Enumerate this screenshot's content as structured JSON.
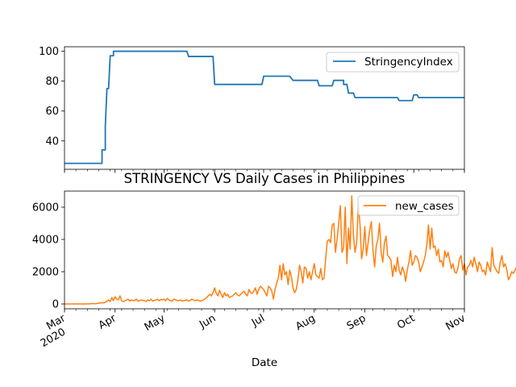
{
  "chart_data": [
    {
      "type": "line",
      "title": "",
      "xlabel": "",
      "ylabel": "",
      "x_range": [
        "2020-03-01",
        "2020-11-01"
      ],
      "ylim": [
        21,
        103
      ],
      "yticks": [
        40,
        60,
        80,
        100
      ],
      "grid": false,
      "legend_position": "upper right",
      "series": [
        {
          "name": "StringencyIndex",
          "color": "#1f77b4",
          "step": true,
          "points": [
            [
              "2020-03-01",
              25
            ],
            [
              "2020-03-24",
              25
            ],
            [
              "2020-03-24",
              34
            ],
            [
              "2020-03-26",
              34
            ],
            [
              "2020-03-26",
              50
            ],
            [
              "2020-03-27",
              75
            ],
            [
              "2020-03-28",
              75
            ],
            [
              "2020-03-29",
              97
            ],
            [
              "2020-03-31",
              97
            ],
            [
              "2020-03-31",
              100
            ],
            [
              "2020-05-15",
              100
            ],
            [
              "2020-05-16",
              96.5
            ],
            [
              "2020-05-31",
              96.5
            ],
            [
              "2020-06-01",
              77.8
            ],
            [
              "2020-06-30",
              77.8
            ],
            [
              "2020-07-01",
              83.3
            ],
            [
              "2020-07-17",
              83.3
            ],
            [
              "2020-07-19",
              80.5
            ],
            [
              "2020-08-03",
              80.5
            ],
            [
              "2020-08-04",
              76.9
            ],
            [
              "2020-08-12",
              76.9
            ],
            [
              "2020-08-13",
              80.5
            ],
            [
              "2020-08-19",
              80.5
            ],
            [
              "2020-08-19",
              77.8
            ],
            [
              "2020-08-21",
              77.8
            ],
            [
              "2020-08-22",
              72
            ],
            [
              "2020-08-25",
              72
            ],
            [
              "2020-08-26",
              69
            ],
            [
              "2020-09-21",
              69
            ],
            [
              "2020-09-22",
              67
            ],
            [
              "2020-09-30",
              67
            ],
            [
              "2020-10-01",
              70.8
            ],
            [
              "2020-10-03",
              70.8
            ],
            [
              "2020-10-04",
              69
            ],
            [
              "2020-11-01",
              69
            ]
          ]
        }
      ]
    },
    {
      "type": "line",
      "title": "STRINGENCY VS Daily Cases in Philippines",
      "xlabel": "Date",
      "ylabel": "",
      "x_range": [
        "2020-03-01",
        "2020-11-01"
      ],
      "ylim": [
        -300,
        7000
      ],
      "yticks": [
        0,
        2000,
        4000,
        6000
      ],
      "grid": false,
      "legend_position": "upper right",
      "xticks": [
        {
          "date": "2020-03-01",
          "label": "Mar",
          "sublabel": "2020"
        },
        {
          "date": "2020-04-01",
          "label": "Apr"
        },
        {
          "date": "2020-05-01",
          "label": "May"
        },
        {
          "date": "2020-06-01",
          "label": "Jun"
        },
        {
          "date": "2020-07-01",
          "label": "Jul"
        },
        {
          "date": "2020-08-01",
          "label": "Aug"
        },
        {
          "date": "2020-09-01",
          "label": "Sep"
        },
        {
          "date": "2020-10-01",
          "label": "Oct"
        },
        {
          "date": "2020-11-01",
          "label": "Nov"
        }
      ],
      "series": [
        {
          "name": "new_cases",
          "color": "#ff7f0e",
          "start_date": "2020-03-01",
          "values": [
            0,
            0,
            0,
            0,
            0,
            0,
            0,
            0,
            0,
            0,
            0,
            0,
            0,
            2,
            5,
            8,
            10,
            30,
            20,
            15,
            30,
            50,
            60,
            80,
            70,
            100,
            180,
            250,
            150,
            400,
            200,
            450,
            300,
            250,
            500,
            200,
            150,
            200,
            250,
            300,
            180,
            250,
            200,
            220,
            300,
            180,
            200,
            250,
            220,
            200,
            150,
            250,
            200,
            300,
            180,
            220,
            250,
            300,
            200,
            280,
            250,
            300,
            200,
            350,
            250,
            200,
            180,
            300,
            250,
            220,
            200,
            250,
            180,
            200,
            230,
            250,
            180,
            220,
            300,
            250,
            200,
            250,
            220,
            180,
            200,
            250,
            300,
            400,
            500,
            600,
            500,
            700,
            1000,
            650,
            500,
            850,
            600,
            400,
            700,
            500,
            600,
            400,
            450,
            500,
            600,
            700,
            550,
            500,
            600,
            700,
            800,
            600,
            500,
            900,
            700,
            650,
            800,
            1000,
            600,
            900,
            1100,
            1000,
            900,
            700,
            500,
            1100,
            1000,
            800,
            300,
            900,
            1300,
            1600,
            2400,
            1500,
            2500,
            1800,
            2000,
            1200,
            2100,
            1700,
            1000,
            700,
            900,
            1500,
            2400,
            2000,
            1300,
            2300,
            2200,
            1600,
            2000,
            1500,
            2000,
            2500,
            1800,
            1700,
            1600,
            2200,
            1500,
            1600,
            2800,
            3900,
            4000,
            3800,
            4900,
            5000,
            3200,
            4000,
            5000,
            6100,
            3200,
            3500,
            6000,
            2500,
            4700,
            3400,
            6700,
            4300,
            3200,
            3800,
            6200,
            5000,
            2800,
            3400,
            4800,
            3000,
            3800,
            4600,
            5100,
            3300,
            2300,
            3600,
            4000,
            5000,
            3200,
            2600,
            3800,
            4200,
            3000,
            2900,
            2700,
            1700,
            2400,
            2000,
            2900,
            2100,
            1800,
            2300,
            2000,
            1400,
            2100,
            2600,
            3300,
            2400,
            2600,
            3000,
            2900,
            2600,
            2000,
            2300,
            2600,
            3000,
            3700,
            4900,
            3400,
            4700,
            3500,
            3600,
            3000,
            3400,
            2600,
            2700,
            2300,
            3300,
            2900,
            3200,
            2700,
            2200,
            2500,
            2000,
            1900,
            2200,
            2800,
            3000,
            2100,
            2500,
            1800,
            2300,
            2400,
            2700,
            2300,
            2900,
            2500,
            2000,
            2600,
            2400,
            2000,
            2100,
            1800,
            2600,
            2300,
            2000,
            3500,
            2400,
            2200,
            2000,
            1900,
            2600,
            3000,
            2300,
            2500,
            2100,
            1500,
            1700,
            2000,
            1900,
            2100,
            2300,
            1600,
            1900,
            2100,
            2000,
            1700,
            2500,
            2000,
            1800,
            2300,
            1900,
            2400
          ]
        }
      ]
    }
  ]
}
